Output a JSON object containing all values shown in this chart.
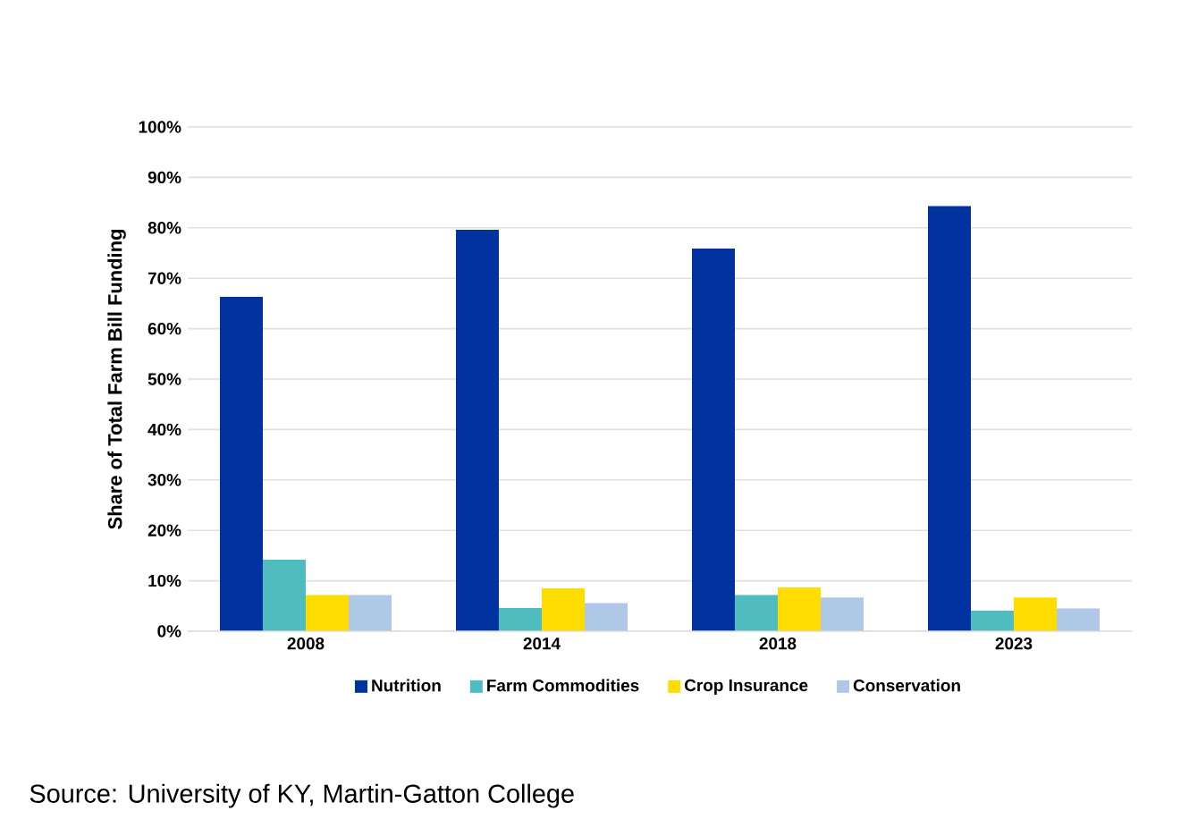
{
  "chart_data": {
    "type": "bar",
    "ylabel": "Share of Total Farm Bill Funding",
    "categories": [
      "2008",
      "2014",
      "2018",
      "2023"
    ],
    "series": [
      {
        "name": "Nutrition",
        "color": "#0033a0",
        "values": [
          66.3,
          79.6,
          75.9,
          84.3
        ]
      },
      {
        "name": "Farm Commodities",
        "color": "#4fbdbf",
        "values": [
          14.2,
          4.6,
          7.2,
          4.1
        ]
      },
      {
        "name": "Crop Insurance",
        "color": "#ffdd00",
        "values": [
          7.2,
          8.5,
          8.7,
          6.7
        ]
      },
      {
        "name": "Conservation",
        "color": "#b0c8e8",
        "values": [
          7.2,
          5.6,
          6.7,
          4.5
        ]
      }
    ],
    "ylim": [
      0,
      100
    ],
    "yticks": [
      {
        "value": 0,
        "label": "0%"
      },
      {
        "value": 10,
        "label": "10%"
      },
      {
        "value": 20,
        "label": "20%"
      },
      {
        "value": 30,
        "label": "30%"
      },
      {
        "value": 40,
        "label": "40%"
      },
      {
        "value": 50,
        "label": "50%"
      },
      {
        "value": 60,
        "label": "60%"
      },
      {
        "value": 70,
        "label": "70%"
      },
      {
        "value": 80,
        "label": "80%"
      },
      {
        "value": 90,
        "label": "90%"
      },
      {
        "value": 100,
        "label": "100%"
      }
    ],
    "grid": "y",
    "legend": "bottom",
    "annotations": [
      "Source: University of KY, Martin-Gatton College"
    ]
  }
}
